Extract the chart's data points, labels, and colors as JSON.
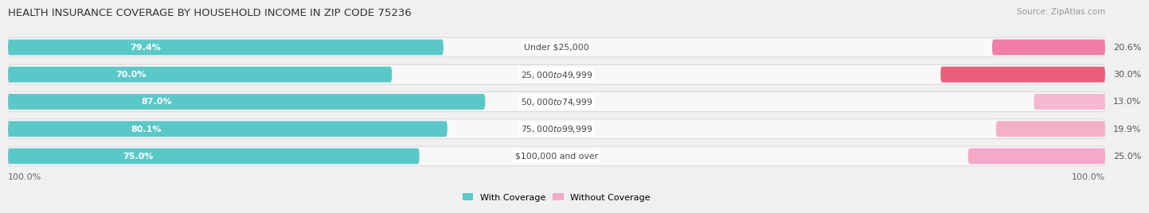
{
  "title": "HEALTH INSURANCE COVERAGE BY HOUSEHOLD INCOME IN ZIP CODE 75236",
  "source": "Source: ZipAtlas.com",
  "categories": [
    "Under $25,000",
    "$25,000 to $49,999",
    "$50,000 to $74,999",
    "$75,000 to $99,999",
    "$100,000 and over"
  ],
  "with_coverage": [
    79.4,
    70.0,
    87.0,
    80.1,
    75.0
  ],
  "without_coverage": [
    20.6,
    30.0,
    13.0,
    19.9,
    25.0
  ],
  "color_with": "#5BC8C8",
  "color_without": "#F07DAA",
  "color_without_light": "#F5A8C8",
  "background_color": "#f0f0f0",
  "bar_track_color": "#e0e0e0",
  "bar_background": "#f8f8f8",
  "title_fontsize": 9.5,
  "legend_label_with": "With Coverage",
  "legend_label_without": "Without Coverage",
  "x_left_label": "100.0%",
  "x_right_label": "100.0%"
}
